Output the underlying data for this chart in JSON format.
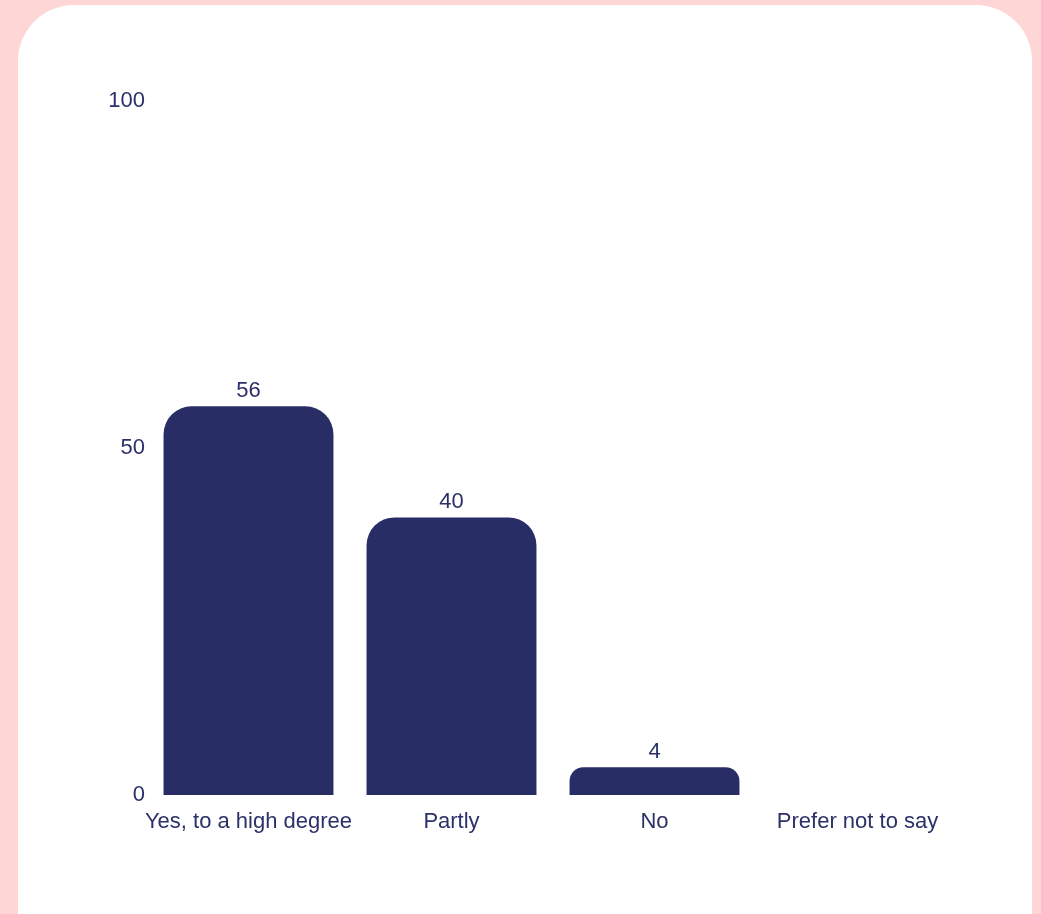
{
  "chart_data": {
    "type": "bar",
    "categories": [
      "Yes, to a high degree",
      "Partly",
      "No",
      "Prefer not to say"
    ],
    "values": [
      56,
      40,
      4,
      0
    ],
    "value_labels": [
      "56",
      "40",
      "4",
      null
    ],
    "color": "#282d66",
    "ylim": [
      0,
      100
    ],
    "yticks": [
      0,
      50,
      100
    ],
    "grid": false,
    "legend": false
  }
}
